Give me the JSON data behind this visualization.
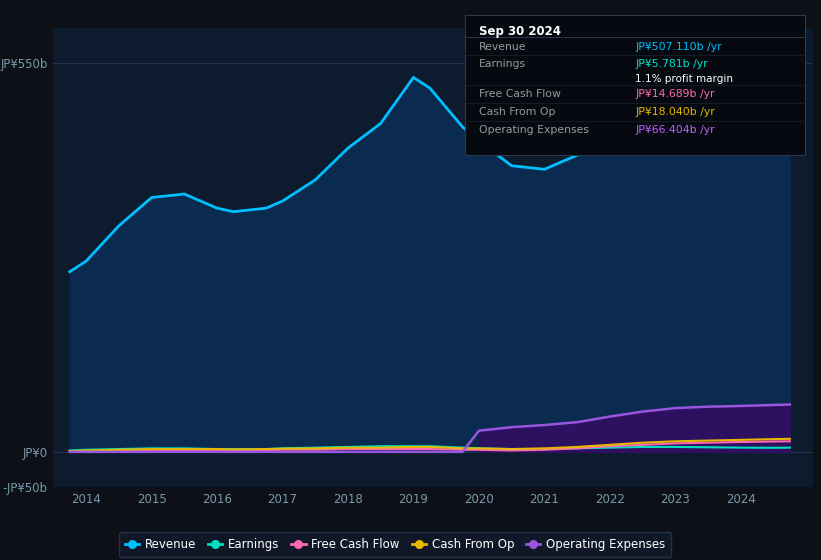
{
  "bg_color": "#0d1117",
  "plot_bg_color": "#0d1b2e",
  "grid_color": "#253555",
  "title": "Sep 30 2024",
  "tooltip": {
    "Revenue": {
      "value": "JP¥507.110b /yr",
      "color": "#00bfff"
    },
    "Earnings": {
      "value": "JP¥5.781b /yr",
      "color": "#00e5cc"
    },
    "profit_margin": "1.1% profit margin",
    "Free Cash Flow": {
      "value": "JP¥14.689b /yr",
      "color": "#ff69b4"
    },
    "Cash From Op": {
      "value": "JP¥18.040b /yr",
      "color": "#e6b800"
    },
    "Operating Expenses": {
      "value": "JP¥66.404b /yr",
      "color": "#bf5fff"
    }
  },
  "years": [
    2013.75,
    2014.0,
    2014.5,
    2015.0,
    2015.5,
    2015.75,
    2016.0,
    2016.25,
    2016.75,
    2017.0,
    2017.5,
    2018.0,
    2018.5,
    2019.0,
    2019.25,
    2019.75,
    2020.0,
    2020.5,
    2021.0,
    2021.5,
    2022.0,
    2022.5,
    2023.0,
    2023.5,
    2024.0,
    2024.5,
    2024.75
  ],
  "revenue": [
    255,
    270,
    320,
    360,
    365,
    355,
    345,
    340,
    345,
    355,
    385,
    430,
    465,
    530,
    515,
    460,
    440,
    405,
    400,
    420,
    450,
    490,
    500,
    490,
    495,
    507,
    510
  ],
  "earnings": [
    2,
    3,
    4,
    5,
    5,
    4.5,
    4,
    4,
    4,
    5,
    6,
    7,
    8,
    8,
    8,
    6,
    5,
    4,
    4,
    5,
    6,
    7,
    7,
    6.5,
    6,
    5.781,
    6
  ],
  "free_cash_flow": [
    0,
    1,
    1.5,
    2,
    2,
    2,
    2,
    2,
    2.5,
    3,
    3,
    4,
    4,
    4,
    4,
    3,
    3,
    2,
    3,
    5,
    8,
    10,
    12,
    13,
    14,
    14.689,
    15
  ],
  "cash_from_op": [
    1,
    2,
    3,
    4,
    4,
    4,
    4,
    3.5,
    4,
    4.5,
    5,
    6,
    6,
    7,
    7,
    5,
    5,
    4,
    5,
    7,
    10,
    13,
    15,
    16,
    17,
    18.04,
    18.5
  ],
  "operating_expenses": [
    0,
    0,
    0,
    0,
    0,
    0,
    0,
    0,
    0,
    0,
    0,
    0,
    0,
    0,
    0,
    0,
    30,
    35,
    38,
    42,
    50,
    57,
    62,
    64,
    65,
    66.404,
    67
  ],
  "revenue_color": "#00bfff",
  "revenue_fill": "#0a2a50",
  "earnings_color": "#00e0c0",
  "free_cash_flow_color": "#ff69b4",
  "cash_from_op_color": "#e6b800",
  "operating_expenses_color": "#9955dd",
  "operating_expenses_fill": "#2e1060",
  "ylim": [
    -50,
    600
  ],
  "yticks_pos": [
    -50,
    0,
    550
  ],
  "ytick_labels": [
    "-JP¥50b",
    "JP¥0",
    "JP¥550b"
  ],
  "xlim": [
    2013.5,
    2025.1
  ],
  "xticks": [
    2014,
    2015,
    2016,
    2017,
    2018,
    2019,
    2020,
    2021,
    2022,
    2023,
    2024
  ],
  "legend_items": [
    {
      "label": "Revenue",
      "color": "#00bfff"
    },
    {
      "label": "Earnings",
      "color": "#00e0c0"
    },
    {
      "label": "Free Cash Flow",
      "color": "#ff69b4"
    },
    {
      "label": "Cash From Op",
      "color": "#e6b800"
    },
    {
      "label": "Operating Expenses",
      "color": "#9955dd"
    }
  ]
}
